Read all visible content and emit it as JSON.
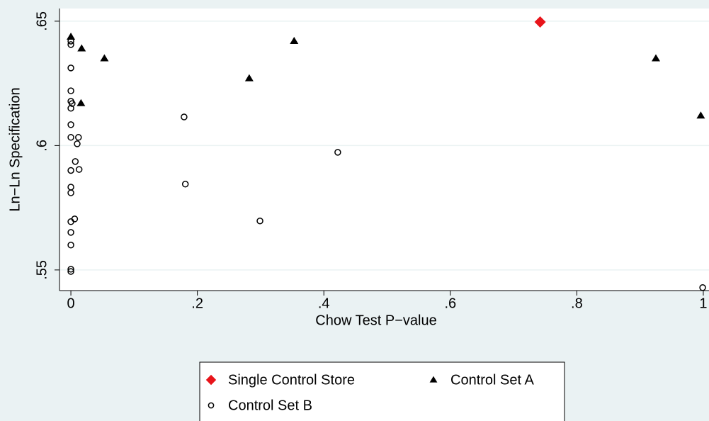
{
  "chart_data": {
    "type": "scatter",
    "x_label": "Chow Test P−value",
    "y_label": "Ln−Ln Specification",
    "xlim": [
      -0.018,
      1.009
    ],
    "ylim": [
      0.5417,
      0.6551
    ],
    "xticks": [
      0,
      {
        "value": 0.2,
        "label": ".2"
      },
      {
        "value": 0.4,
        "label": ".4"
      },
      {
        "value": 0.6,
        "label": ".6"
      },
      {
        "value": 0.8,
        "label": ".8"
      },
      1
    ],
    "yticks": [
      {
        "value": 0.55,
        "label": ".55"
      },
      {
        "value": 0.6,
        "label": ".6"
      },
      {
        "value": 0.65,
        "label": ".65"
      }
    ],
    "grid": true,
    "legend": "bottom",
    "series": [
      {
        "name": "Single Control Store",
        "color": "#e8141a",
        "marker": "diamond",
        "x": [
          0.742
        ],
        "y": [
          0.6497
        ]
      },
      {
        "name": "Control Set A",
        "color": "#000000",
        "marker": "triangle",
        "x": [
          0,
          0.017,
          0.053,
          0.016,
          0.282,
          0.353,
          0.925,
          0.996
        ],
        "y": [
          0.6437,
          0.639,
          0.635,
          0.617,
          0.627,
          0.642,
          0.635,
          0.612
        ]
      },
      {
        "name": "Control Set B",
        "color": "#000000",
        "marker": "circle",
        "x": [
          0,
          0,
          0,
          0,
          0,
          0.002,
          0,
          0,
          0,
          0.012,
          0.01,
          0.007,
          0,
          0.013,
          0,
          0,
          0.006,
          0,
          0,
          0,
          0,
          0,
          0.179,
          0.181,
          0.299,
          0.422,
          0.999
        ],
        "y": [
          0.642,
          0.6406,
          0.6312,
          0.622,
          0.6178,
          0.6169,
          0.615,
          0.6084,
          0.6033,
          0.6033,
          0.6007,
          0.5936,
          0.59,
          0.5904,
          0.5833,
          0.581,
          0.5705,
          0.5694,
          0.5651,
          0.56,
          0.5503,
          0.5494,
          0.6115,
          0.5845,
          0.5697,
          0.5973,
          0.5429
        ]
      }
    ]
  }
}
